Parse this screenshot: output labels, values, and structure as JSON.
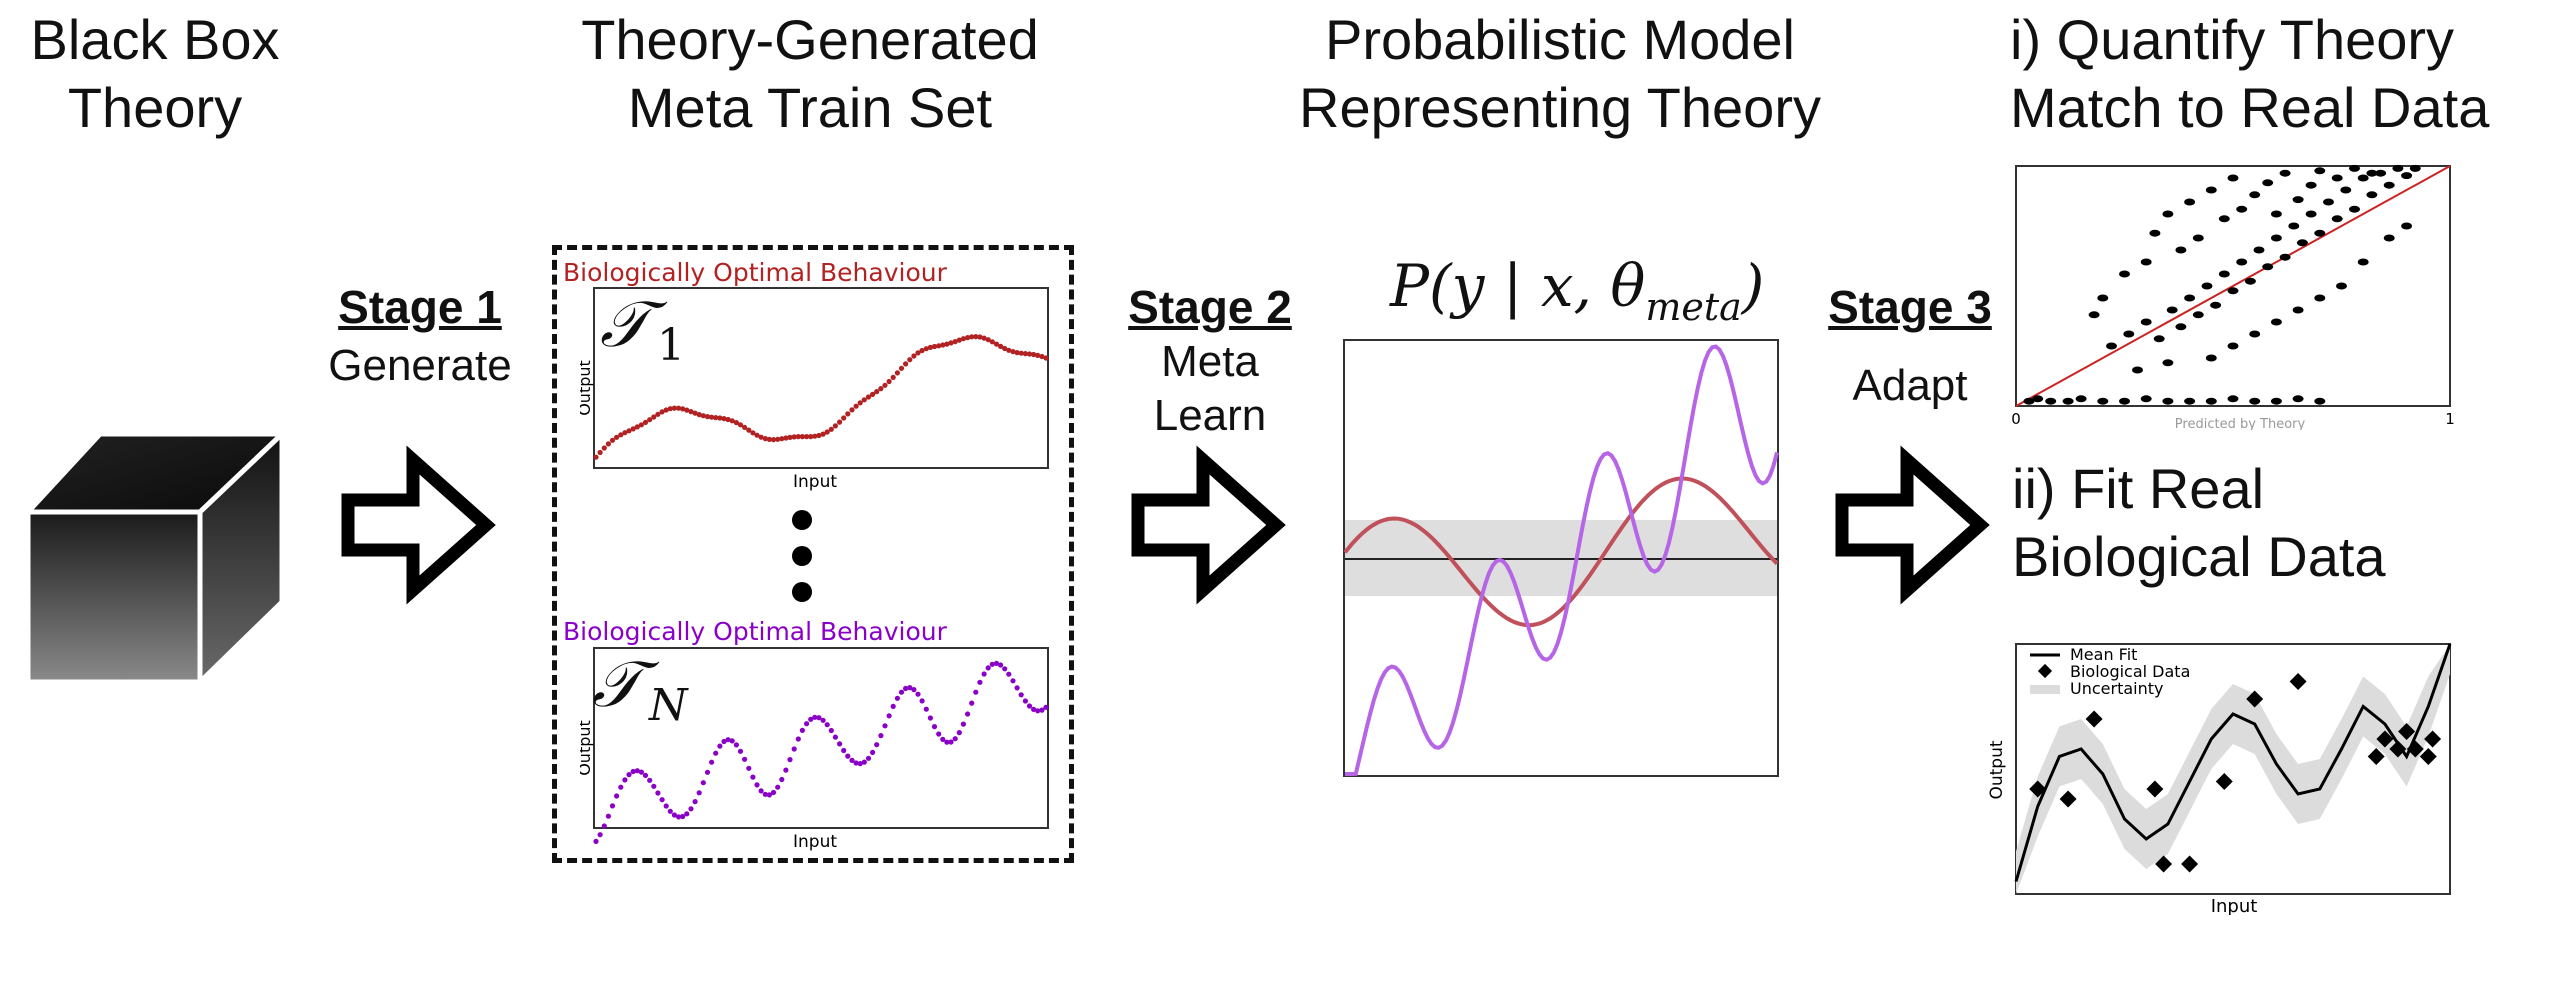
{
  "columns": {
    "black_box": {
      "line1": "Black Box",
      "line2": "Theory"
    },
    "meta_train": {
      "line1": "Theory-Generated",
      "line2": "Meta Train Set"
    },
    "prob_model": {
      "line1": "Probabilistic Model",
      "line2": "Representing Theory"
    },
    "quantify": {
      "line1": "i) Quantify Theory",
      "line2": "Match to Real Data"
    },
    "fit": {
      "line1": "ii) Fit Real",
      "line2": "Biological Data"
    }
  },
  "stages": {
    "stage1": {
      "title": "Stage 1",
      "sub1": "Generate"
    },
    "stage2": {
      "title": "Stage 2",
      "sub1": "Meta",
      "sub2": "Learn"
    },
    "stage3": {
      "title": "Stage 3",
      "sub1": "Adapt"
    }
  },
  "train_set": {
    "task1": {
      "title": "Biologically Optimal Behaviour",
      "symbol": "𝒯",
      "subscript": "1",
      "xlabel": "Input",
      "ylabel": "Output",
      "color": "#b22222"
    },
    "taskN": {
      "title": "Biologically Optimal Behaviour",
      "symbol": "𝒯",
      "subscript": "N",
      "xlabel": "Input",
      "ylabel": "Output",
      "color": "#8b00c9"
    },
    "ellipsis": "⋮"
  },
  "model": {
    "formula": "P(y | x, θ",
    "formula_sub": "meta",
    "formula_close": ")",
    "band_color": "#d9d9d9",
    "curve1_color": "#c0505a",
    "curve2_color": "#b565e6"
  },
  "scatter": {
    "x_tick_min": "0",
    "x_tick_max": "1",
    "x_label": "Predicted by Theory",
    "line_color": "#cc2222"
  },
  "fit_chart": {
    "legend": [
      "Mean Fit",
      "Biological Data",
      "Uncertainty"
    ],
    "xlabel": "Input",
    "ylabel": "Output"
  },
  "chart_data": [
    {
      "type": "scatter",
      "title": "i) Quantify Theory Match to Real Data",
      "xlabel": "Predicted by Theory",
      "xticks": [
        "0",
        "1"
      ],
      "xlim": [
        0,
        1
      ],
      "ylim": [
        0,
        1
      ],
      "reference_line": [
        [
          0,
          0
        ],
        [
          1,
          1
        ]
      ],
      "points": [
        [
          0.03,
          0.02
        ],
        [
          0.05,
          0.03
        ],
        [
          0.08,
          0.02
        ],
        [
          0.12,
          0.02
        ],
        [
          0.15,
          0.03
        ],
        [
          0.2,
          0.02
        ],
        [
          0.25,
          0.02
        ],
        [
          0.3,
          0.03
        ],
        [
          0.35,
          0.02
        ],
        [
          0.4,
          0.02
        ],
        [
          0.45,
          0.02
        ],
        [
          0.5,
          0.03
        ],
        [
          0.55,
          0.02
        ],
        [
          0.6,
          0.02
        ],
        [
          0.65,
          0.03
        ],
        [
          0.7,
          0.02
        ],
        [
          0.22,
          0.25
        ],
        [
          0.26,
          0.3
        ],
        [
          0.3,
          0.35
        ],
        [
          0.33,
          0.28
        ],
        [
          0.36,
          0.4
        ],
        [
          0.38,
          0.33
        ],
        [
          0.4,
          0.45
        ],
        [
          0.42,
          0.38
        ],
        [
          0.44,
          0.5
        ],
        [
          0.46,
          0.42
        ],
        [
          0.48,
          0.55
        ],
        [
          0.5,
          0.48
        ],
        [
          0.52,
          0.6
        ],
        [
          0.54,
          0.52
        ],
        [
          0.56,
          0.65
        ],
        [
          0.58,
          0.58
        ],
        [
          0.6,
          0.7
        ],
        [
          0.62,
          0.62
        ],
        [
          0.64,
          0.75
        ],
        [
          0.66,
          0.68
        ],
        [
          0.68,
          0.8
        ],
        [
          0.7,
          0.72
        ],
        [
          0.72,
          0.85
        ],
        [
          0.74,
          0.78
        ],
        [
          0.76,
          0.9
        ],
        [
          0.78,
          0.82
        ],
        [
          0.8,
          0.95
        ],
        [
          0.82,
          0.88
        ],
        [
          0.84,
          0.97
        ],
        [
          0.86,
          0.92
        ],
        [
          0.88,
          0.99
        ],
        [
          0.9,
          0.96
        ],
        [
          0.92,
          0.99
        ],
        [
          0.3,
          0.6
        ],
        [
          0.32,
          0.72
        ],
        [
          0.35,
          0.8
        ],
        [
          0.38,
          0.65
        ],
        [
          0.4,
          0.85
        ],
        [
          0.42,
          0.7
        ],
        [
          0.45,
          0.9
        ],
        [
          0.48,
          0.78
        ],
        [
          0.5,
          0.95
        ],
        [
          0.52,
          0.82
        ],
        [
          0.55,
          0.88
        ],
        [
          0.58,
          0.93
        ],
        [
          0.6,
          0.8
        ],
        [
          0.62,
          0.97
        ],
        [
          0.65,
          0.86
        ],
        [
          0.68,
          0.92
        ],
        [
          0.7,
          0.98
        ],
        [
          0.74,
          0.95
        ],
        [
          0.78,
          0.99
        ],
        [
          0.82,
          0.97
        ],
        [
          0.9,
          0.75
        ],
        [
          0.86,
          0.7
        ],
        [
          0.6,
          0.35
        ],
        [
          0.65,
          0.4
        ],
        [
          0.55,
          0.3
        ],
        [
          0.7,
          0.45
        ],
        [
          0.5,
          0.25
        ],
        [
          0.45,
          0.2
        ],
        [
          0.75,
          0.5
        ],
        [
          0.8,
          0.6
        ],
        [
          0.35,
          0.18
        ],
        [
          0.28,
          0.15
        ],
        [
          0.25,
          0.55
        ],
        [
          0.2,
          0.45
        ],
        [
          0.18,
          0.38
        ]
      ]
    },
    {
      "type": "line",
      "title": "ii) Fit Real Biological Data",
      "xlabel": "Input",
      "ylabel": "Output",
      "xlim": [
        0,
        1
      ],
      "ylim": [
        0,
        1
      ],
      "series": [
        {
          "name": "Mean Fit",
          "x": [
            0,
            0.05,
            0.1,
            0.15,
            0.2,
            0.25,
            0.3,
            0.35,
            0.4,
            0.45,
            0.5,
            0.55,
            0.6,
            0.65,
            0.7,
            0.75,
            0.8,
            0.85,
            0.9,
            0.95,
            1.0
          ],
          "y": [
            0.05,
            0.35,
            0.55,
            0.58,
            0.48,
            0.3,
            0.22,
            0.28,
            0.45,
            0.62,
            0.72,
            0.68,
            0.52,
            0.4,
            0.42,
            0.58,
            0.75,
            0.68,
            0.55,
            0.75,
            1.0
          ]
        },
        {
          "name": "Biological Data",
          "points": [
            [
              0.05,
              0.42
            ],
            [
              0.12,
              0.38
            ],
            [
              0.18,
              0.7
            ],
            [
              0.32,
              0.42
            ],
            [
              0.34,
              0.12
            ],
            [
              0.4,
              0.12
            ],
            [
              0.48,
              0.45
            ],
            [
              0.55,
              0.78
            ],
            [
              0.65,
              0.85
            ],
            [
              0.83,
              0.55
            ],
            [
              0.85,
              0.62
            ],
            [
              0.88,
              0.58
            ],
            [
              0.9,
              0.65
            ],
            [
              0.92,
              0.58
            ],
            [
              0.95,
              0.55
            ],
            [
              0.96,
              0.62
            ]
          ]
        },
        {
          "name": "Uncertainty",
          "band_halfwidth": 0.12
        }
      ]
    }
  ]
}
